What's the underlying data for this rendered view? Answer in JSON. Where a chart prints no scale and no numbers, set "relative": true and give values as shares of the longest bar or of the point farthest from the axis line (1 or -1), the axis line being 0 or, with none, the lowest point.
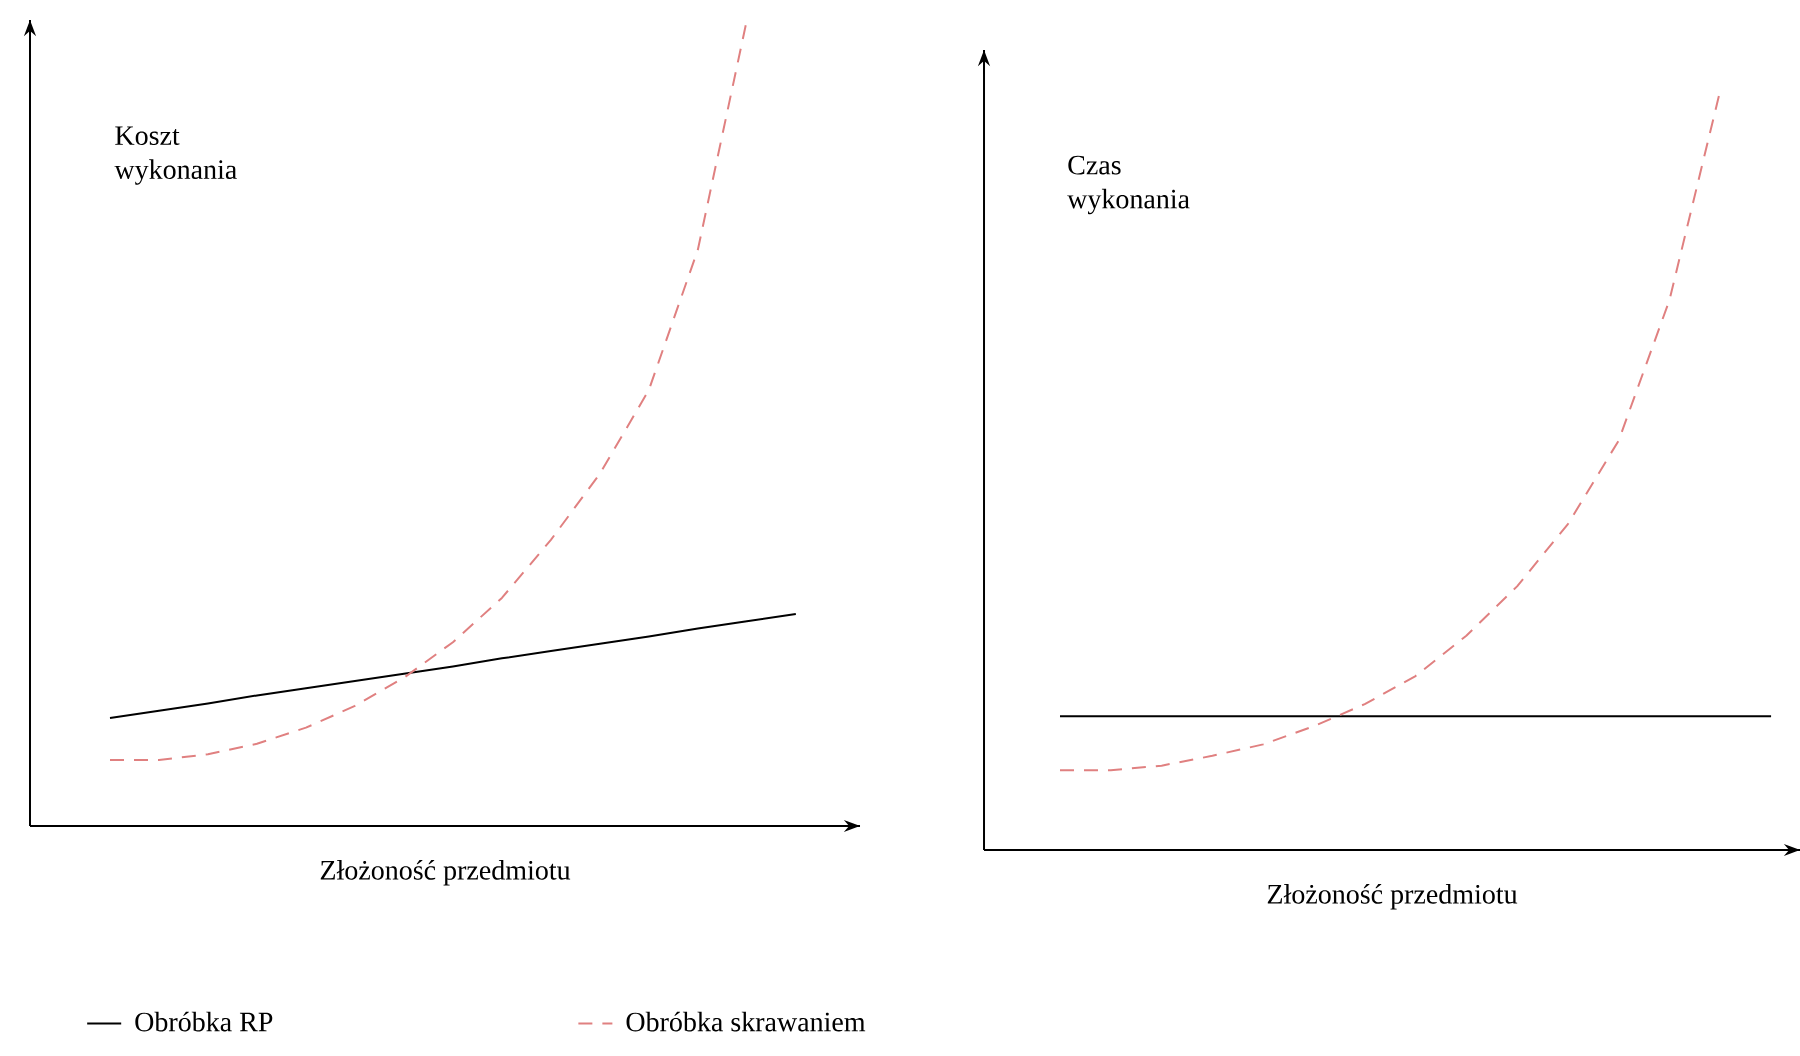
{
  "chart_data": [
    {
      "type": "line",
      "relative": true,
      "ylabel": "Koszt wykonania",
      "xlabel": "Złożoność przedmiotu",
      "legend": "bottom",
      "categories": [
        null,
        null,
        null,
        null,
        null,
        null,
        null,
        null,
        null,
        null,
        null,
        null,
        null,
        null,
        null
      ],
      "series": [
        {
          "name": "Obróbka RP",
          "color": "#000000",
          "line_style": "solid",
          "values": [
            0.134,
            0.143,
            0.152,
            0.162,
            0.171,
            0.18,
            0.189,
            0.198,
            0.208,
            0.217,
            0.226,
            0.235,
            0.245,
            0.254,
            0.263
          ]
        },
        {
          "name": "Obróbka skrawaniem",
          "color": "#e08080",
          "line_style": "dashed",
          "values": [
            0.082,
            0.082,
            0.089,
            0.102,
            0.122,
            0.149,
            0.184,
            0.228,
            0.283,
            0.355,
            0.437,
            0.541,
            0.715,
            1.0,
            null
          ]
        }
      ]
    },
    {
      "type": "line",
      "relative": true,
      "ylabel": "Czas wykonania",
      "xlabel": "Złożoność przedmiotu",
      "categories": [
        null,
        null,
        null,
        null,
        null,
        null,
        null,
        null,
        null,
        null,
        null,
        null,
        null,
        null,
        null
      ],
      "series": [
        {
          "color": "#000000",
          "line_style": "solid",
          "values": [
            0.176,
            0.176,
            0.176,
            0.176,
            0.176,
            0.176,
            0.176,
            0.176,
            0.176,
            0.176,
            0.176,
            0.176,
            0.176,
            0.176,
            0.176
          ]
        },
        {
          "color": "#e08080",
          "line_style": "dashed",
          "values": [
            0.105,
            0.105,
            0.111,
            0.124,
            0.139,
            0.163,
            0.192,
            0.229,
            0.282,
            0.347,
            0.429,
            0.539,
            0.724,
            1.0,
            null
          ]
        }
      ]
    }
  ]
}
